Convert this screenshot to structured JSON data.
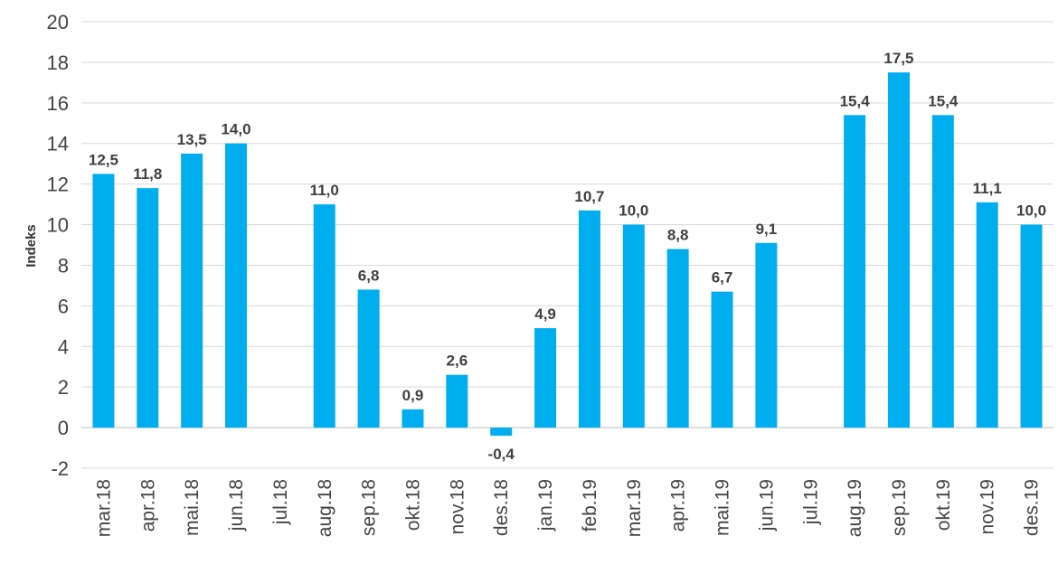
{
  "chart_data": {
    "type": "bar",
    "ylabel": "Indeks",
    "xlabel": "",
    "ylim": [
      -2,
      20
    ],
    "yticks": [
      -2,
      0,
      2,
      4,
      6,
      8,
      10,
      12,
      14,
      16,
      18,
      20
    ],
    "grid": true,
    "legend": "none",
    "bar_color": "#00AEEF",
    "categories": [
      "mar.18",
      "apr.18",
      "mai.18",
      "jun.18",
      "jul.18",
      "aug.18",
      "sep.18",
      "okt.18",
      "nov.18",
      "des.18",
      "jan.19",
      "feb.19",
      "mar.19",
      "apr.19",
      "mai.19",
      "jun.19",
      "jul.19",
      "aug.19",
      "sep.19",
      "okt.19",
      "nov.19",
      "des.19"
    ],
    "values": [
      12.5,
      11.8,
      13.5,
      14.0,
      null,
      11.0,
      6.8,
      0.9,
      2.6,
      -0.4,
      4.9,
      10.7,
      10.0,
      8.8,
      6.7,
      9.1,
      null,
      15.4,
      17.5,
      15.4,
      11.1,
      10.0
    ],
    "data_labels": [
      "12,5",
      "11,8",
      "13,5",
      "14,0",
      "",
      "11,0",
      "6,8",
      "0,9",
      "2,6",
      "-0,4",
      "4,9",
      "10,7",
      "10,0",
      "8,8",
      "6,7",
      "9,1",
      "",
      "15,4",
      "17,5",
      "15,4",
      "11,1",
      "10,0"
    ]
  }
}
